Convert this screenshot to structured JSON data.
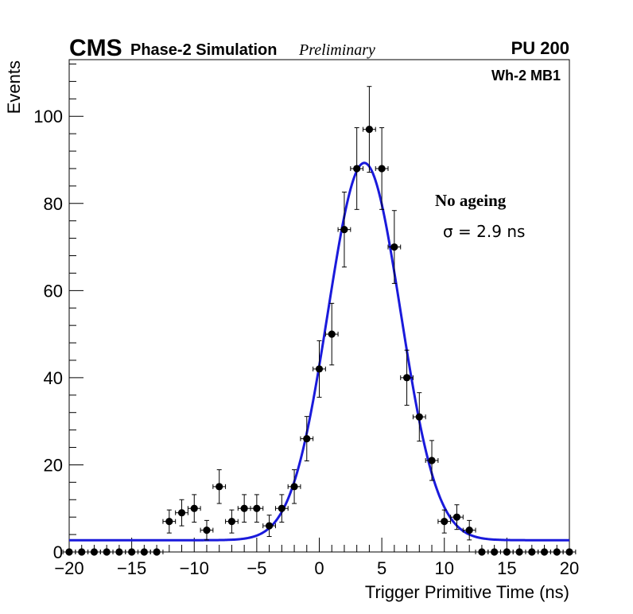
{
  "header": {
    "experiment": "CMS",
    "subtitle": "Phase-2 Simulation",
    "status": "Preliminary",
    "pileup": "PU 200",
    "station": "Wh-2 MB1"
  },
  "annotations": {
    "condition": "No ageing",
    "resolution": "σ = 2.9 ns"
  },
  "chart_data": {
    "type": "scatter",
    "title": "",
    "xlabel": "Trigger Primitive Time (ns)",
    "ylabel": "Events",
    "xlim": [
      -20,
      20
    ],
    "ylim": [
      0,
      113
    ],
    "x_ticks": [
      -20,
      -15,
      -10,
      -5,
      0,
      5,
      10,
      15,
      20
    ],
    "x_tick_labels": [
      "−20",
      "−15",
      "−10",
      "−5",
      "0",
      "5",
      "10",
      "15",
      "20"
    ],
    "y_ticks": [
      0,
      20,
      40,
      60,
      80,
      100
    ],
    "y_tick_labels": [
      "0",
      "20",
      "40",
      "60",
      "80",
      "100"
    ],
    "bin_half_width": 0.5,
    "series": [
      {
        "name": "Simulation",
        "style": "points",
        "color": "#000000",
        "x": [
          -20,
          -19,
          -18,
          -17,
          -16,
          -15,
          -14,
          -13,
          -12,
          -11,
          -10,
          -9,
          -8,
          -7,
          -6,
          -5,
          -4,
          -3,
          -2,
          -1,
          0,
          1,
          2,
          3,
          4,
          5,
          6,
          7,
          8,
          9,
          10,
          11,
          12,
          13,
          14,
          15,
          16,
          17,
          18,
          19,
          20
        ],
        "y": [
          0,
          0,
          0,
          0,
          0,
          0,
          0,
          0,
          7,
          9,
          10,
          5,
          15,
          7,
          10,
          10,
          6,
          10,
          15,
          26,
          42,
          50,
          74,
          88,
          97,
          88,
          70,
          40,
          31,
          21,
          7,
          8,
          5,
          0,
          0,
          0,
          0,
          0,
          0,
          0,
          0
        ]
      },
      {
        "name": "Gaussian fit",
        "style": "line",
        "color": "#1a1adb",
        "constant": 86.6,
        "mean": 3.6,
        "sigma": 2.9,
        "baseline": 2.7
      }
    ]
  }
}
